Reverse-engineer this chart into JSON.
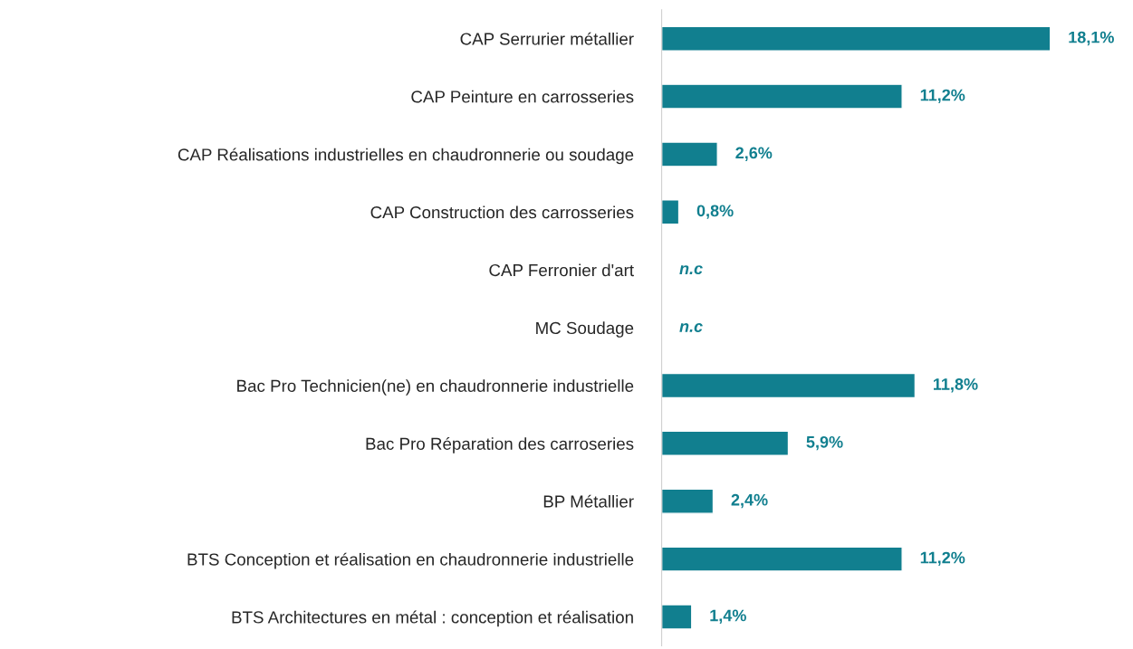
{
  "chart_data": {
    "type": "bar",
    "orientation": "horizontal",
    "categories": [
      "CAP Serrurier métallier",
      "CAP Peinture en carrosseries",
      "CAP Réalisations industrielles en chaudronnerie ou soudage",
      "CAP Construction des carrosseries",
      "CAP Ferronier d'art",
      "MC Soudage",
      "Bac Pro Technicien(ne) en chaudronnerie industrielle",
      "Bac Pro Réparation des carroseries",
      "BP Métallier",
      "BTS Conception et réalisation en chaudronnerie industrielle",
      "BTS Architectures en métal : conception et réalisation"
    ],
    "values": [
      18.1,
      11.2,
      2.6,
      0.8,
      null,
      null,
      11.8,
      5.9,
      2.4,
      11.2,
      1.4
    ],
    "value_labels": [
      "18,1%",
      "11,2%",
      "2,6%",
      "0,8%",
      "n.c",
      "n.c",
      "11,8%",
      "5,9%",
      "2,4%",
      "11,2%",
      "1,4%"
    ],
    "color": "#117f8f",
    "tick_labels": "y",
    "grid": false,
    "legend": false
  }
}
